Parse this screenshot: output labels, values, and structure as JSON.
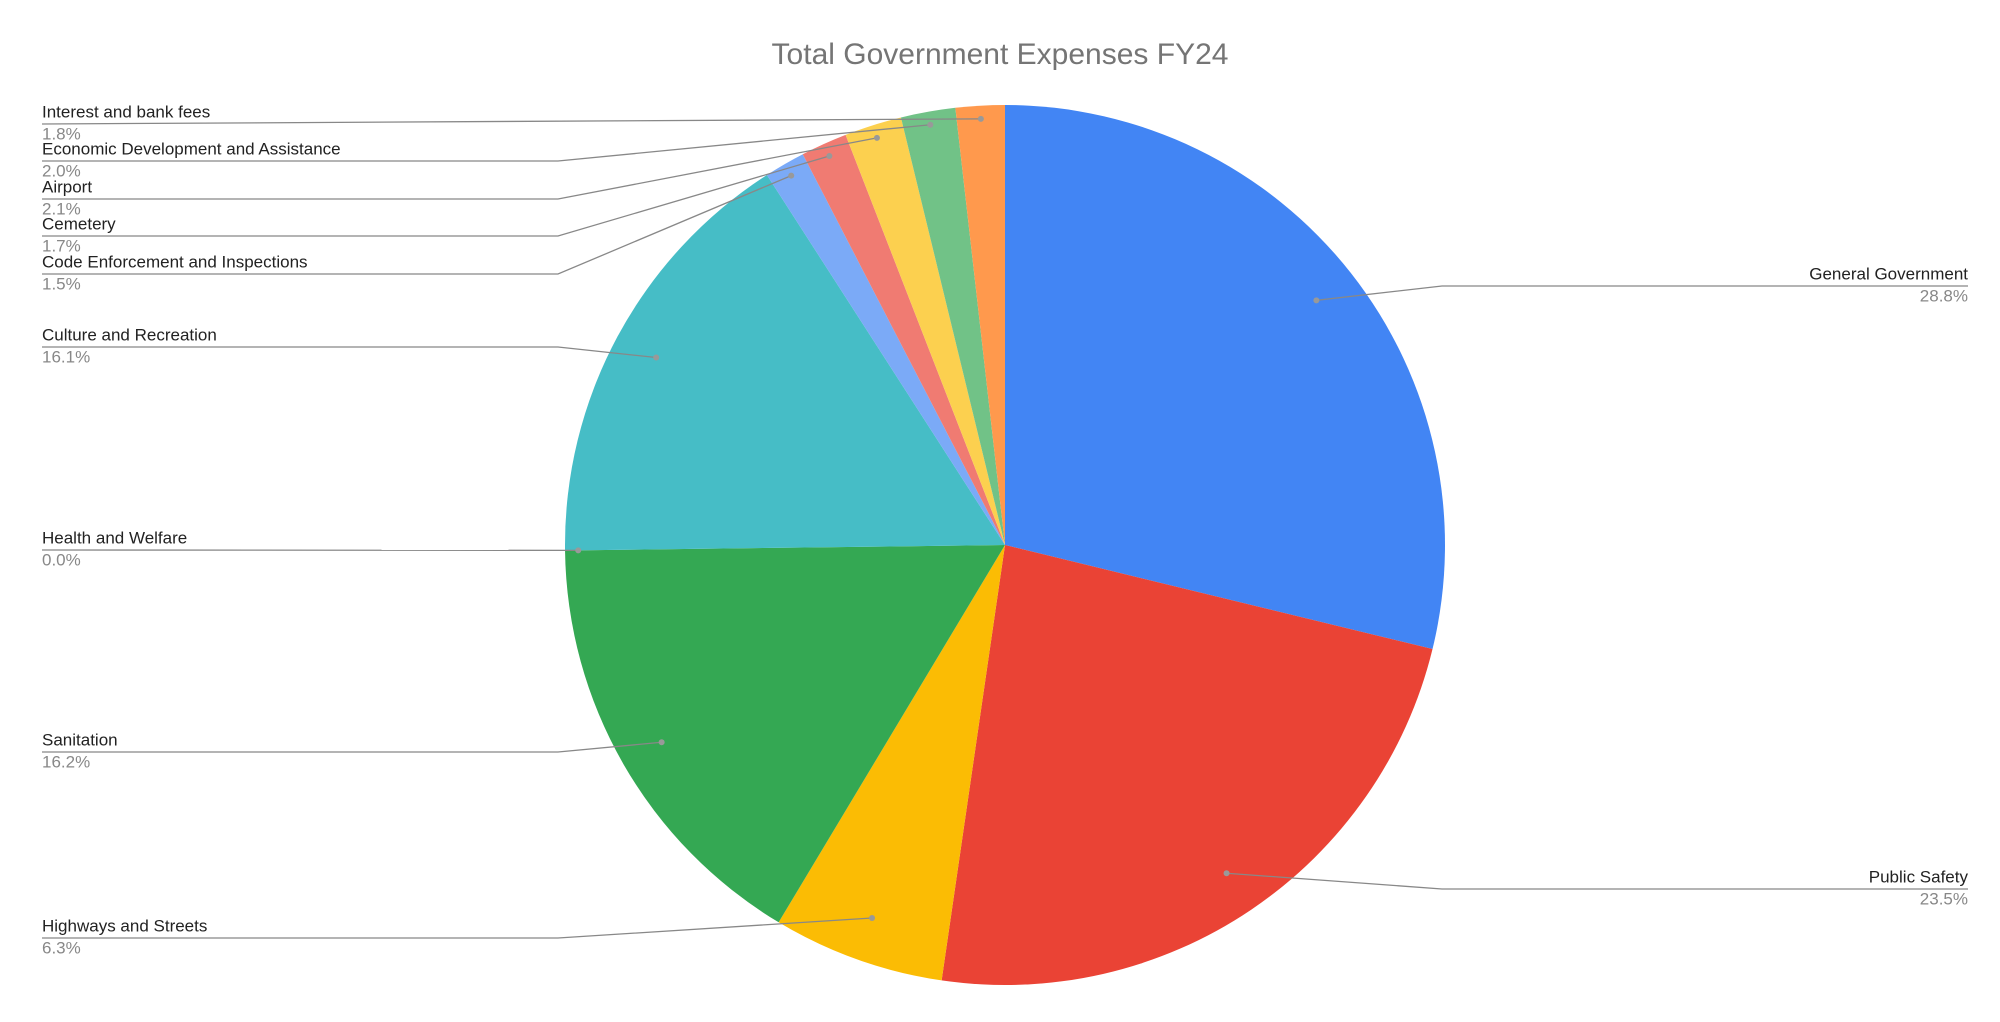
{
  "chart_data": {
    "type": "pie",
    "title": "Total Government Expenses FY24",
    "categories": [
      "General Government",
      "Public Safety",
      "Highways and Streets",
      "Sanitation",
      "Health and Welfare",
      "Culture and Recreation",
      "Code Enforcement and Inspections",
      "Cemetery",
      "Airport",
      "Economic Development and Assistance",
      "Interest and bank fees"
    ],
    "values": [
      28.8,
      23.5,
      6.3,
      16.2,
      0.0,
      16.1,
      1.5,
      1.7,
      2.1,
      2.0,
      1.8
    ],
    "value_labels": [
      "28.8%",
      "23.5%",
      "6.3%",
      "16.2%",
      "0.0%",
      "16.1%",
      "1.5%",
      "1.7%",
      "2.1%",
      "2.0%",
      "1.8%"
    ],
    "colors": [
      "#4285f4",
      "#ea4335",
      "#fbbc04",
      "#34a853",
      "#ff6d01",
      "#46bdc6",
      "#7baaf7",
      "#f07b72",
      "#fcd04f",
      "#71c287",
      "#ff994d"
    ]
  }
}
